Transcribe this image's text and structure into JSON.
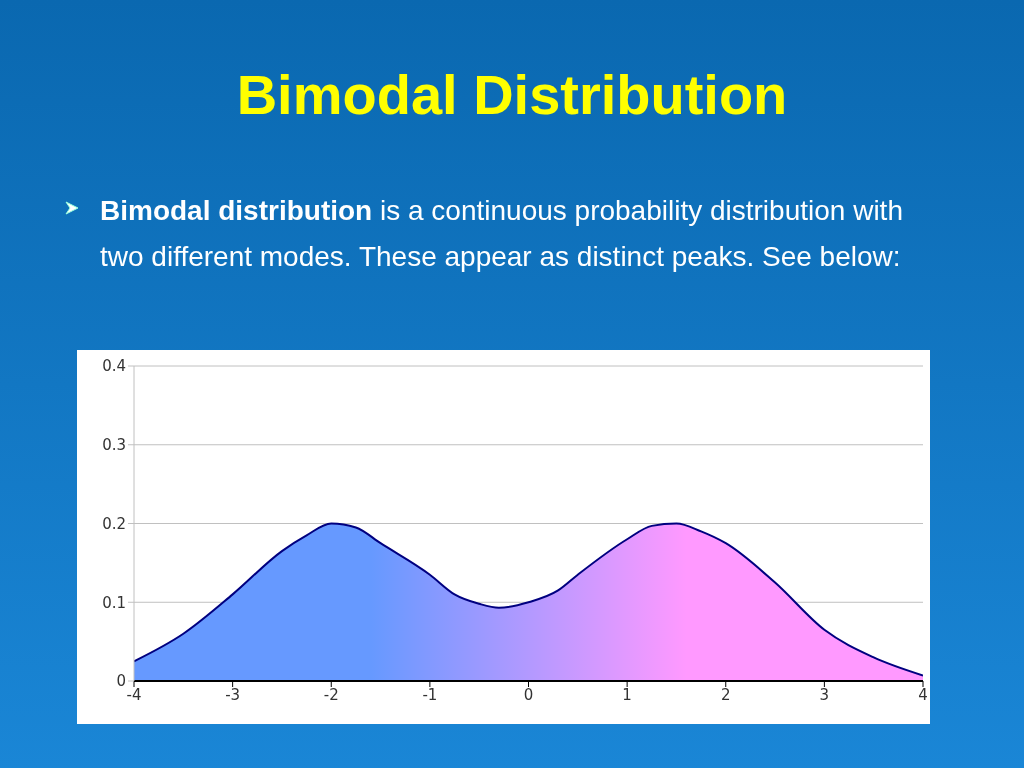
{
  "chart_data": {
    "type": "area",
    "title": "Bimodal Distribution",
    "annotations": [
      "Bimodal distribution",
      "is a continuous probability distribution with two different modes. These appear as distinct peaks. See below:"
    ],
    "x": [
      -4,
      -3.5,
      -3,
      -2.5,
      -2.25,
      -2,
      -1.75,
      -1.5,
      -1,
      -0.75,
      -0.5,
      -0.3,
      0,
      0.3,
      0.5,
      1,
      1.25,
      1.5,
      1.75,
      2,
      2.5,
      3,
      3.5,
      4
    ],
    "series": [
      {
        "color": "#6699ff",
        "values": [
          0.025,
          0.06,
          0.11,
          0.165,
          0.185,
          0.2,
          0.195,
          0.175,
          0.135,
          0.11,
          0.098,
          0.093,
          0.1,
          0.115,
          0.135,
          0.18,
          0.197,
          0.2,
          0.19,
          0.175,
          0.125,
          0.065,
          0.03,
          0.007
        ]
      }
    ],
    "xlim": [
      -4,
      4
    ],
    "xticks": [
      -4,
      -3,
      -2,
      -1,
      0,
      1,
      2,
      3,
      4
    ],
    "ylim": [
      0,
      0.4
    ],
    "yticks": [
      0,
      0.1,
      0.2,
      0.3,
      0.4
    ],
    "grid": "y"
  }
}
